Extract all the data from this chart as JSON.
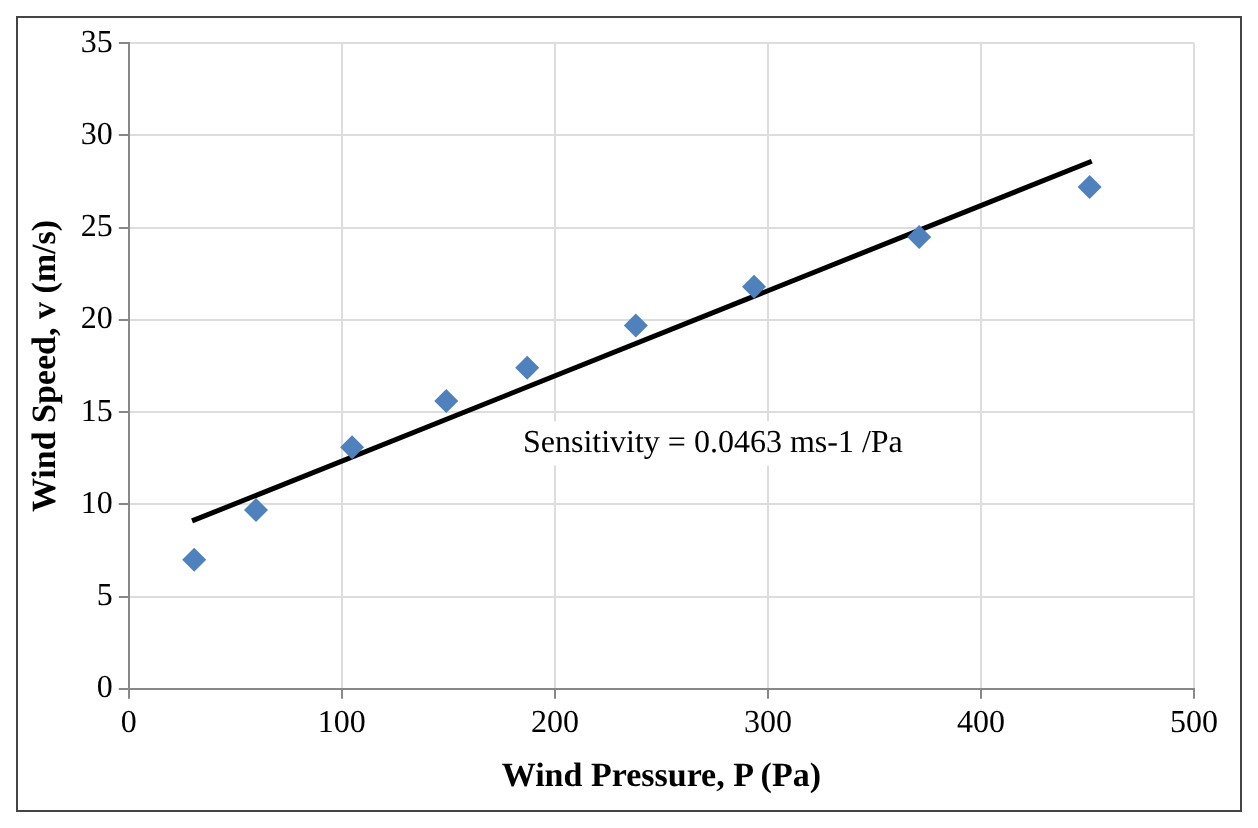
{
  "chart_data": {
    "type": "scatter",
    "xlabel": "Wind Pressure, P (Pa)",
    "ylabel": "Wind Speed, v (m/s)",
    "x": [
      30.7,
      59.7,
      104.8,
      149,
      187,
      238,
      293.5,
      371,
      451
    ],
    "series": [
      {
        "color": "#4f81bd",
        "marker": "diamond",
        "values": [
          7.0,
          9.7,
          13.1,
          15.6,
          17.4,
          19.7,
          21.8,
          24.5,
          27.2
        ]
      },
      {
        "type": "line",
        "color": "#000000",
        "marker": "none",
        "line_style": "solid",
        "x": [
          29.7,
          452
        ],
        "values": [
          9.1,
          28.6
        ]
      }
    ],
    "xlim": [
      0,
      500
    ],
    "xticks": [
      0,
      100,
      200,
      300,
      400,
      500
    ],
    "ylim": [
      0,
      35
    ],
    "yticks": [
      0,
      5,
      10,
      15,
      20,
      25,
      30,
      35
    ],
    "grid": true,
    "legend": false,
    "annotations": [
      "Sensitivity = 0.0463 ms-1 /Pa"
    ]
  }
}
